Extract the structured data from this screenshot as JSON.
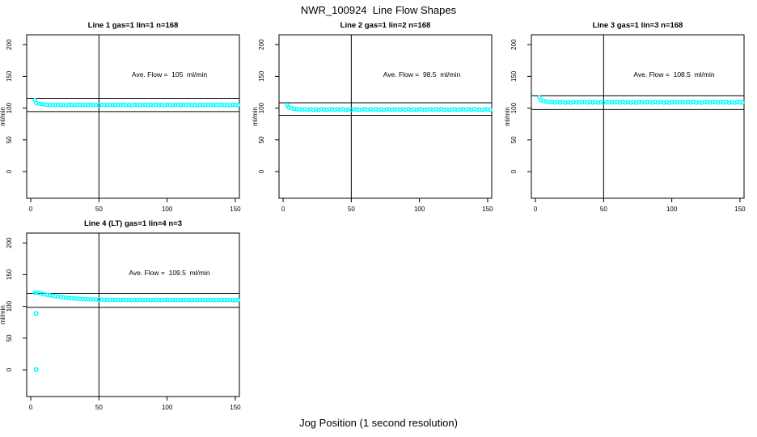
{
  "chart_data": {
    "type": "scatter",
    "title": "NWR_100924  Line Flow Shapes",
    "xlabel": "Jog Position (1 second resolution)",
    "ylabel": "ml/min",
    "x_ticks": [
      0,
      50,
      100,
      150
    ],
    "y_ticks": [
      0,
      50,
      100,
      150,
      200
    ],
    "xlim": [
      -3,
      153
    ],
    "ylim": [
      -42,
      215.5
    ],
    "grid": false,
    "legend": "none",
    "point_color": "#00FFFF",
    "axis_color": "#000000",
    "background_color": "#FFFFFF",
    "shared_x": [
      3,
      4,
      6,
      8,
      10,
      12,
      14,
      16,
      18,
      20,
      22,
      24,
      26,
      28,
      30,
      32,
      34,
      36,
      38,
      40,
      42,
      44,
      46,
      48,
      50,
      52,
      54,
      56,
      58,
      60,
      62,
      64,
      66,
      68,
      70,
      72,
      74,
      76,
      78,
      80,
      82,
      84,
      86,
      88,
      90,
      92,
      94,
      96,
      98,
      100,
      102,
      104,
      106,
      108,
      110,
      112,
      114,
      116,
      118,
      120,
      122,
      124,
      126,
      128,
      130,
      132,
      134,
      136,
      138,
      140,
      142,
      144,
      146,
      148,
      150,
      152
    ],
    "panels": [
      {
        "title": "Line 1 gas=1 lin=1 n=168",
        "ave_flow": 105,
        "annotation": "Ave. Flow =  105  ml/min",
        "ref_upper": 115.5,
        "ref_lower": 94.5,
        "vline_x": 50,
        "y": [
          113,
          108,
          106.8,
          106.2,
          105.9,
          105.3,
          104.6,
          105.5,
          104.8,
          105.6,
          104.5,
          105.1,
          104.4,
          105.4,
          105.0,
          104.7,
          105.2,
          105.3,
          104.6,
          105.5,
          104.8,
          105.6,
          104.5,
          105.1,
          104.4,
          105.4,
          105.0,
          104.7,
          105.2,
          105.3,
          104.6,
          105.5,
          104.8,
          105.6,
          104.5,
          105.1,
          104.4,
          105.4,
          105.0,
          104.7,
          105.2,
          105.3,
          104.6,
          105.5,
          104.8,
          105.6,
          104.5,
          105.1,
          104.4,
          105.4,
          105.0,
          104.7,
          105.2,
          105.3,
          104.6,
          105.5,
          104.8,
          105.6,
          104.5,
          105.1,
          104.4,
          105.4,
          105.0,
          104.7,
          105.2,
          105.3,
          104.6,
          105.5,
          104.8,
          105.6,
          104.5,
          105.1,
          104.4,
          105.4,
          105.0,
          104.7
        ]
      },
      {
        "title": "Line 2 gas=1 lin=2 n=168",
        "ave_flow": 98.5,
        "annotation": "Ave. Flow =  98.5  ml/min",
        "ref_upper": 108.4,
        "ref_lower": 88.7,
        "vline_x": 50,
        "y": [
          105,
          101.5,
          99.8,
          98.8,
          98.3,
          98.1,
          97.4,
          98.3,
          97.6,
          98.4,
          97.3,
          97.9,
          97.2,
          98.2,
          97.8,
          97.5,
          98.0,
          98.1,
          97.4,
          98.3,
          97.6,
          98.4,
          97.3,
          97.9,
          97.2,
          98.2,
          97.8,
          97.5,
          98.0,
          98.1,
          97.4,
          98.3,
          97.6,
          98.4,
          97.3,
          97.9,
          97.2,
          98.2,
          97.8,
          97.5,
          98.0,
          98.1,
          97.4,
          98.3,
          97.6,
          98.4,
          97.3,
          97.9,
          97.2,
          98.2,
          97.8,
          97.5,
          98.0,
          98.1,
          97.4,
          98.3,
          97.6,
          98.4,
          97.3,
          97.9,
          97.2,
          98.2,
          97.8,
          97.5,
          98.0,
          98.1,
          97.4,
          98.3,
          97.6,
          98.4,
          97.3,
          97.9,
          97.2,
          98.2,
          97.8,
          97.5
        ]
      },
      {
        "title": "Line 3 gas=1 lin=3 n=168",
        "ave_flow": 108.5,
        "annotation": "Ave. Flow =  108.5  ml/min",
        "ref_upper": 119.4,
        "ref_lower": 97.7,
        "vline_x": 50,
        "y": [
          117,
          112.5,
          111.0,
          110.3,
          109.9,
          109.5,
          108.8,
          109.7,
          109.0,
          109.8,
          108.7,
          109.3,
          108.6,
          109.6,
          109.2,
          108.9,
          109.4,
          109.5,
          108.8,
          109.7,
          109.0,
          109.8,
          108.7,
          109.3,
          108.6,
          109.6,
          109.2,
          108.9,
          109.4,
          109.5,
          108.8,
          109.7,
          109.0,
          109.8,
          108.7,
          109.3,
          108.6,
          109.6,
          109.2,
          108.9,
          109.4,
          109.5,
          108.8,
          109.7,
          109.0,
          109.8,
          108.7,
          109.3,
          108.6,
          109.6,
          109.2,
          108.9,
          109.4,
          109.5,
          108.8,
          109.7,
          109.0,
          109.8,
          108.7,
          109.3,
          108.6,
          109.6,
          109.2,
          108.9,
          109.4,
          109.5,
          108.8,
          109.7,
          109.0,
          109.8,
          108.7,
          109.3,
          108.6,
          109.6,
          109.2,
          108.9
        ]
      },
      {
        "title": "Line 4 (LT) gas=1 lin=4 n=3",
        "ave_flow": 109.5,
        "annotation": "Ave. Flow =  109.5  ml/min",
        "ref_upper": 120.5,
        "ref_lower": 98.6,
        "vline_x": 50,
        "y": [
          121.5,
          122.0,
          121.0,
          120.0,
          119.2,
          118.4,
          117.6,
          116.9,
          116.2,
          115.5,
          114.9,
          114.3,
          113.8,
          113.3,
          112.9,
          112.6,
          112.3,
          112.0,
          111.8,
          111.6,
          111.4,
          111.2,
          111.1,
          111.0,
          110.9,
          110.8,
          110.4,
          110.7,
          110.3,
          110.6,
          110.2,
          110.5,
          110.1,
          110.6,
          110.0,
          110.4,
          109.9,
          110.3,
          110.0,
          110.5,
          109.9,
          110.2,
          110.4,
          109.8,
          110.3,
          110.0,
          110.4,
          109.8,
          110.2,
          110.5,
          109.9,
          110.1,
          110.3,
          109.8,
          110.2,
          110.0,
          110.4,
          109.9,
          110.1,
          110.3,
          109.8,
          110.2,
          110.4,
          109.9,
          110.0,
          110.3,
          109.8,
          110.1,
          110.2,
          109.9,
          110.4,
          110.0,
          110.2,
          109.8,
          110.1,
          110.0
        ],
        "outliers": [
          [
            4,
            89
          ],
          [
            4,
            0.5
          ]
        ]
      }
    ]
  }
}
